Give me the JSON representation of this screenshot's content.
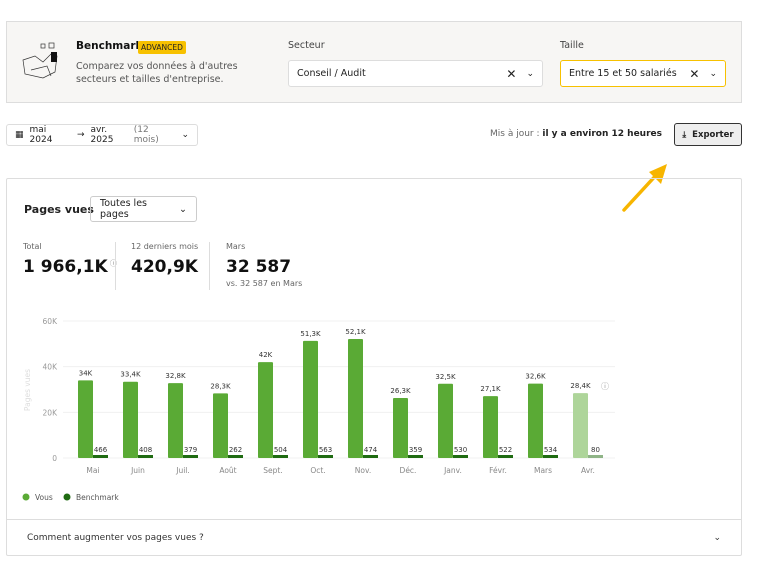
{
  "benchmark": {
    "title": "Benchmark",
    "badge": "ADVANCED",
    "description": "Comparez vos données à d'autres secteurs et tailles d'entreprise.",
    "sector_label": "Secteur",
    "sector_value": "Conseil / Audit",
    "size_label": "Taille",
    "size_value": "Entre 15 et 50 salariés"
  },
  "daterange": {
    "start": "mai 2024",
    "arrow": "→",
    "end": "avr. 2025",
    "duration": "(12 mois)"
  },
  "update": {
    "label": "Mis à jour :",
    "value": "il y a environ 12 heures"
  },
  "export_label": "Exporter",
  "card": {
    "title": "Pages vues",
    "filter": "Toutes les pages",
    "kpis": [
      {
        "label": "Total",
        "value": "1 966,1K"
      },
      {
        "label": "12 derniers mois",
        "value": "420,9K"
      },
      {
        "label": "Mars",
        "value": "32 587",
        "sub": "vs. 32 587 en Mars"
      }
    ],
    "footer": "Comment augmenter vos pages vues ?"
  },
  "colors": {
    "vous": "#5aaa35",
    "vous_partial": "#aed59a",
    "benchmark": "#1f6b12",
    "accent": "#f7c100"
  },
  "chart_data": {
    "type": "bar",
    "ylabel": "Pages vues",
    "ylim": [
      0,
      60000
    ],
    "yticks": [
      "0",
      "20K",
      "40K",
      "60K"
    ],
    "ytick_values": [
      0,
      20000,
      40000,
      60000
    ],
    "grid": true,
    "legend": "bottom-left",
    "categories": [
      "Mai",
      "Juin",
      "Juil.",
      "Août",
      "Sept.",
      "Oct.",
      "Nov.",
      "Déc.",
      "Janv.",
      "Févr.",
      "Mars",
      "Avr."
    ],
    "series": [
      {
        "name": "Vous",
        "values": [
          34000,
          33400,
          32800,
          28300,
          42000,
          51300,
          52100,
          26300,
          32500,
          27100,
          32600,
          28400
        ],
        "labels": [
          "34K",
          "33,4K",
          "32,8K",
          "28,3K",
          "42K",
          "51,3K",
          "52,1K",
          "26,3K",
          "32,5K",
          "27,1K",
          "32,6K",
          "28,4K"
        ]
      },
      {
        "name": "Benchmark",
        "values": [
          466,
          408,
          379,
          262,
          504,
          563,
          474,
          359,
          530,
          522,
          534,
          80
        ],
        "labels": [
          "466",
          "408",
          "379",
          "262",
          "504",
          "563",
          "474",
          "359",
          "530",
          "522",
          "534",
          "80"
        ]
      }
    ],
    "partial_last": true
  }
}
